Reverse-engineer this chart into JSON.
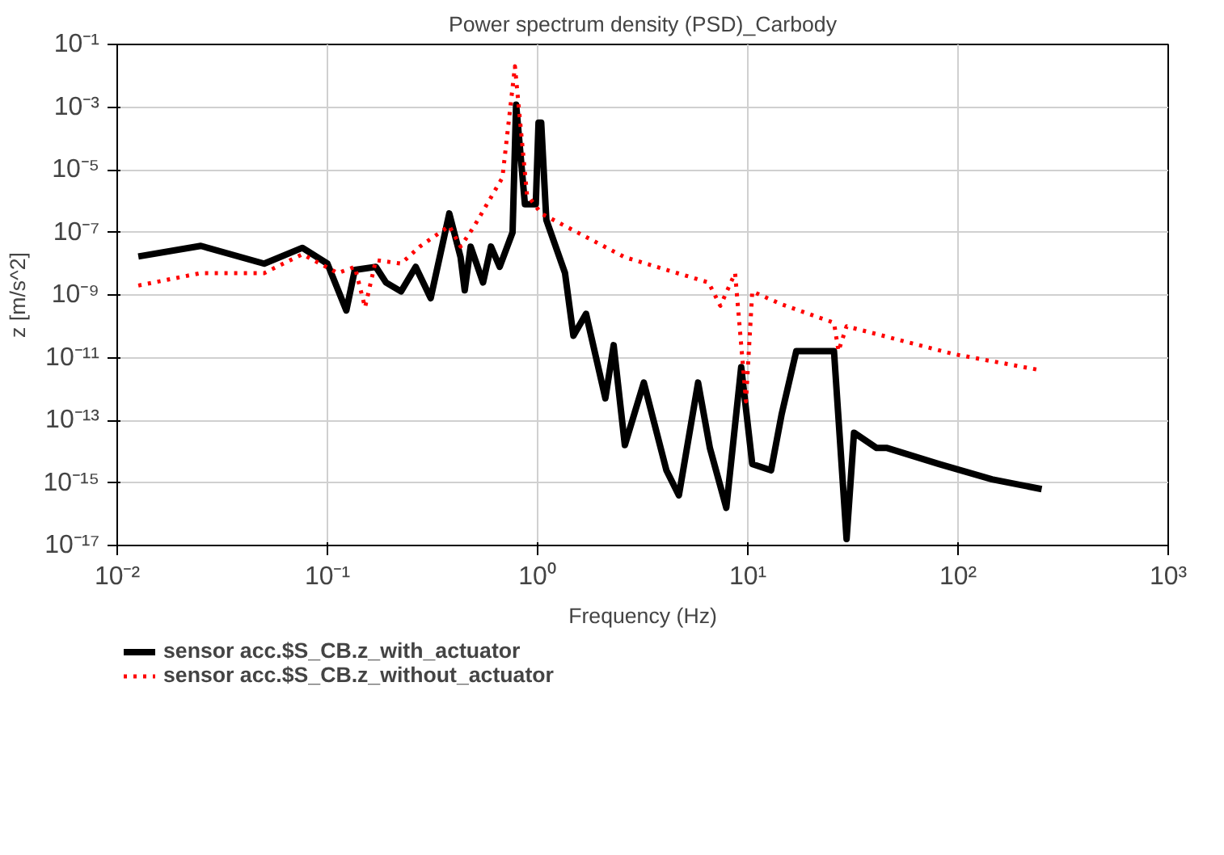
{
  "chart_data": {
    "type": "line",
    "title": "Power spectrum density (PSD)_Carbody",
    "xlabel": "Frequency (Hz)",
    "ylabel": "z [m/s^2]",
    "log": "xy",
    "grid": true,
    "legend": "bottom",
    "xlim": [
      0.01,
      1000
    ],
    "ylim": [
      1e-17,
      0.1
    ],
    "xticks": [
      {
        "value": 0.01,
        "label": "10⁻²"
      },
      {
        "value": 0.1,
        "label": "10⁻¹"
      },
      {
        "value": 1,
        "label": "10⁰"
      },
      {
        "value": 10,
        "label": "10¹"
      },
      {
        "value": 100,
        "label": "10²"
      },
      {
        "value": 1000,
        "label": "10³"
      }
    ],
    "yticks": [
      {
        "value": 1e-17,
        "label": "10⁻¹⁷"
      },
      {
        "value": 1e-15,
        "label": "10⁻¹⁵"
      },
      {
        "value": 1e-13,
        "label": "10⁻¹³"
      },
      {
        "value": 1e-11,
        "label": "10⁻¹¹"
      },
      {
        "value": 1e-09,
        "label": "10⁻⁹"
      },
      {
        "value": 1e-07,
        "label": "10⁻⁷"
      },
      {
        "value": 1e-05,
        "label": "10⁻⁵"
      },
      {
        "value": 0.001,
        "label": "10⁻³"
      },
      {
        "value": 0.1,
        "label": "10⁻¹"
      }
    ],
    "series": [
      {
        "name": "sensor acc.$S_CB.z_with_actuator",
        "color": "#000000",
        "line_style": "solid",
        "x": [
          0.0126,
          0.025,
          0.05,
          0.076,
          0.1,
          0.123,
          0.135,
          0.17,
          0.19,
          0.224,
          0.263,
          0.31,
          0.38,
          0.43,
          0.45,
          0.48,
          0.55,
          0.6,
          0.66,
          0.76,
          0.79,
          0.87,
          0.98,
          1.01,
          1.04,
          1.1,
          1.35,
          1.48,
          1.7,
          2.1,
          2.3,
          2.6,
          3.2,
          4.1,
          4.7,
          5.8,
          6.6,
          7.9,
          9.3,
          10.5,
          12.9,
          14.5,
          17,
          25.7,
          29.5,
          32,
          41,
          46,
          81,
          145,
          250
        ],
        "values": [
          1.7e-08,
          3.7e-08,
          1e-08,
          3.2e-08,
          1e-08,
          3.2e-10,
          6.3e-09,
          7.9e-09,
          2.5e-09,
          1.3e-09,
          7.9e-09,
          7.9e-10,
          4e-07,
          1.6e-08,
          1.4e-09,
          3.5e-08,
          2.5e-09,
          3.5e-08,
          7.9e-09,
          1e-07,
          0.0012,
          7.9e-07,
          7.9e-07,
          0.00032,
          0.00032,
          2.5e-07,
          5e-09,
          5e-11,
          2.5e-10,
          5e-13,
          2.5e-11,
          1.6e-14,
          1.6e-12,
          2.5e-15,
          4e-16,
          1.6e-12,
          1.3e-14,
          1.6e-16,
          5e-12,
          4e-15,
          2.5e-15,
          1.6e-13,
          1.6e-11,
          1.6e-11,
          1.6e-17,
          4e-14,
          1.3e-14,
          1.3e-14,
          4e-15,
          1.3e-15,
          6.3e-16
        ]
      },
      {
        "name": "sensor acc.$S_CB.z_without_actuator",
        "color": "#ff0000",
        "line_style": "dotted",
        "x": [
          0.0126,
          0.025,
          0.05,
          0.076,
          0.112,
          0.135,
          0.151,
          0.17,
          0.224,
          0.275,
          0.38,
          0.43,
          0.5,
          0.68,
          0.78,
          0.89,
          1.04,
          2.6,
          6.5,
          7.4,
          8.7,
          9.8,
          10.5,
          14.5,
          25.7,
          27,
          29.5,
          95,
          245
        ],
        "values": [
          2e-09,
          5e-09,
          5e-09,
          2e-08,
          5e-09,
          7.9e-09,
          4e-10,
          1.3e-08,
          1e-08,
          3.5e-08,
          1.6e-07,
          3.5e-08,
          1.6e-07,
          5.6e-06,
          0.02,
          1.6e-06,
          4e-07,
          1.6e-08,
          2.5e-09,
          4.5e-10,
          5e-09,
          4e-13,
          1.3e-09,
          5e-10,
          1.3e-10,
          1.6e-11,
          1e-10,
          1.3e-11,
          4e-12
        ]
      }
    ]
  }
}
